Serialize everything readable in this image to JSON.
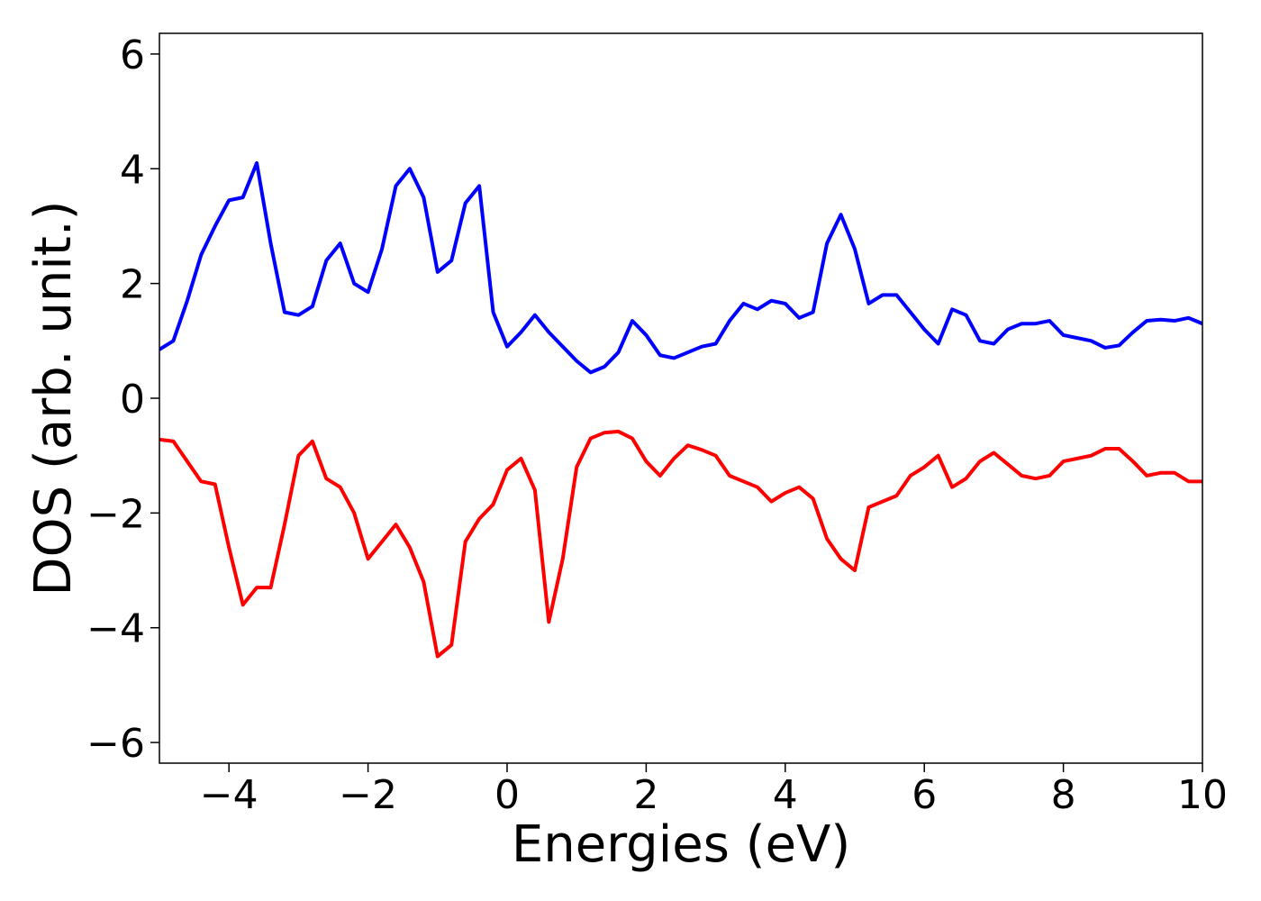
{
  "chart_data": {
    "type": "line",
    "xlabel": "Energies (eV)",
    "ylabel": "DOS (arb. unit.)",
    "xlim": [
      -5,
      10
    ],
    "ylim": [
      -6.36,
      6.36
    ],
    "xticks": [
      {
        "value": -4,
        "label": "−4"
      },
      {
        "value": -2,
        "label": "−2"
      },
      0,
      2,
      4,
      6,
      8,
      10
    ],
    "yticks": [
      {
        "value": -6,
        "label": "−6"
      },
      {
        "value": -4,
        "label": "−4"
      },
      {
        "value": -2,
        "label": "−2"
      },
      0,
      2,
      4,
      6
    ],
    "x": [
      -5,
      -4.8,
      -4.6,
      -4.4,
      -4.2,
      -4,
      -3.8,
      -3.6,
      -3.4,
      -3.2,
      -3,
      -2.8,
      -2.6,
      -2.4,
      -2.2,
      -2,
      -1.8,
      -1.6,
      -1.4,
      -1.2,
      -1,
      -0.8,
      -0.6,
      -0.4,
      -0.2,
      0,
      0.2,
      0.4,
      0.6,
      0.8,
      1,
      1.2,
      1.4,
      1.6,
      1.8,
      2,
      2.2,
      2.4,
      2.6,
      2.8,
      3,
      3.2,
      3.4,
      3.6,
      3.8,
      4,
      4.2,
      4.4,
      4.6,
      4.8,
      5,
      5.2,
      5.4,
      5.6,
      5.8,
      6,
      6.2,
      6.4,
      6.6,
      6.8,
      7,
      7.2,
      7.4,
      7.6,
      7.8,
      8,
      8.2,
      8.4,
      8.6,
      8.8,
      9,
      9.2,
      9.4,
      9.6,
      9.8,
      10
    ],
    "series": [
      {
        "color": "#0000ff",
        "values": [
          0.85,
          1.0,
          1.7,
          2.5,
          3.0,
          3.45,
          3.5,
          4.1,
          2.7,
          1.5,
          1.45,
          1.6,
          2.4,
          2.7,
          2.0,
          1.85,
          2.6,
          3.7,
          4.0,
          3.5,
          2.2,
          2.4,
          3.4,
          3.7,
          1.5,
          0.9,
          1.15,
          1.45,
          1.15,
          0.9,
          0.65,
          0.45,
          0.55,
          0.8,
          1.35,
          1.1,
          0.75,
          0.7,
          0.8,
          0.9,
          0.95,
          1.35,
          1.65,
          1.55,
          1.7,
          1.65,
          1.4,
          1.5,
          2.7,
          3.2,
          2.6,
          1.65,
          1.8,
          1.8,
          1.5,
          1.2,
          0.95,
          1.55,
          1.45,
          1.0,
          0.95,
          1.2,
          1.3,
          1.3,
          1.35,
          1.1,
          1.05,
          1.0,
          0.88,
          0.92,
          1.15,
          1.35,
          1.37,
          1.35,
          1.4,
          1.3
        ]
      },
      {
        "color": "#ff0000",
        "values": [
          -0.72,
          -0.75,
          -1.1,
          -1.45,
          -1.5,
          -2.6,
          -3.6,
          -3.3,
          -3.3,
          -2.2,
          -1.0,
          -0.75,
          -1.4,
          -1.55,
          -2.0,
          -2.8,
          -2.5,
          -2.2,
          -2.6,
          -3.2,
          -4.5,
          -4.3,
          -2.5,
          -2.1,
          -1.85,
          -1.25,
          -1.05,
          -1.6,
          -3.9,
          -2.8,
          -1.2,
          -0.7,
          -0.6,
          -0.58,
          -0.7,
          -1.1,
          -1.35,
          -1.05,
          -0.82,
          -0.9,
          -1.0,
          -1.35,
          -1.45,
          -1.55,
          -1.8,
          -1.65,
          -1.55,
          -1.75,
          -2.45,
          -2.8,
          -3.0,
          -1.9,
          -1.8,
          -1.7,
          -1.35,
          -1.2,
          -1.0,
          -1.55,
          -1.4,
          -1.1,
          -0.95,
          -1.15,
          -1.35,
          -1.4,
          -1.35,
          -1.1,
          -1.05,
          -1.0,
          -0.88,
          -0.88,
          -1.1,
          -1.35,
          -1.3,
          -1.3,
          -1.45,
          -1.45
        ]
      }
    ]
  }
}
